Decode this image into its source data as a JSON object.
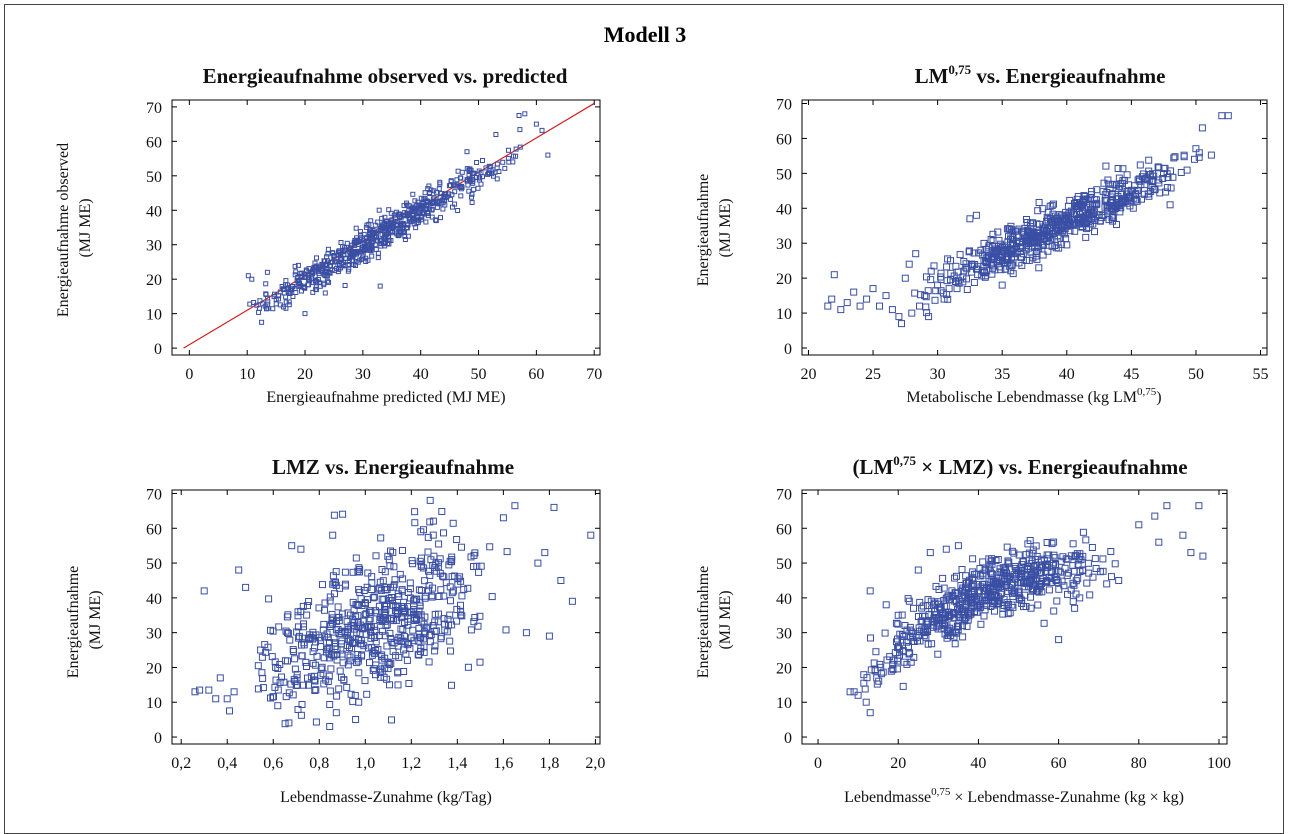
{
  "figure": {
    "title": "Modell 3"
  },
  "chart_data": [
    {
      "type": "scatter",
      "id": "p1",
      "title": "Energieaufnahme observed vs. predicted",
      "xlabel": "Energieaufnahme predicted (MJ ME)",
      "ylabel_lines": [
        "Energieaufnahme observed",
        "(MJ ME)"
      ],
      "xlim": [
        -3,
        71
      ],
      "ylim": [
        -2,
        72
      ],
      "xticks": [
        0,
        10,
        20,
        30,
        40,
        50,
        60,
        70
      ],
      "yticks": [
        0,
        10,
        20,
        30,
        40,
        50,
        60,
        70
      ],
      "xtick_labels": [
        "0",
        "10",
        "20",
        "30",
        "40",
        "50",
        "60",
        "70"
      ],
      "ytick_labels": [
        "0",
        "10",
        "20",
        "30",
        "40",
        "50",
        "60",
        "70"
      ],
      "marker_color": "#3a4fa3",
      "marker_size": "small",
      "reference_line": {
        "from": [
          -1,
          0
        ],
        "to": [
          70,
          71
        ],
        "color": "#d02020"
      },
      "cluster_model": {
        "x_range": [
          10,
          62
        ],
        "relation": "y = x",
        "spread": 2.6,
        "n": 650
      },
      "highlights": [
        {
          "x": 10.2,
          "y": 21
        },
        {
          "x": 10.8,
          "y": 20
        },
        {
          "x": 12.5,
          "y": 7.5
        },
        {
          "x": 33,
          "y": 18
        },
        {
          "x": 57,
          "y": 67.5
        },
        {
          "x": 58,
          "y": 68
        },
        {
          "x": 53,
          "y": 62
        },
        {
          "x": 48,
          "y": 57
        },
        {
          "x": 20,
          "y": 10
        },
        {
          "x": 13.5,
          "y": 22
        },
        {
          "x": 60,
          "y": 65
        },
        {
          "x": 62,
          "y": 56
        }
      ]
    },
    {
      "type": "scatter",
      "id": "p2",
      "title_main": "LM",
      "title_sup": "0,75",
      "title_rest": " vs. Energieaufnahme",
      "xlabel_main": "Metabolische Lebendmasse (kg LM",
      "xlabel_sup": "0,75",
      "xlabel_end": ")",
      "ylabel_lines": [
        "Energieaufnahme",
        "(MJ ME)"
      ],
      "xlim": [
        19.5,
        55.5
      ],
      "ylim": [
        -2,
        71
      ],
      "xticks": [
        20,
        25,
        30,
        35,
        40,
        45,
        50,
        55
      ],
      "yticks": [
        0,
        10,
        20,
        30,
        40,
        50,
        60,
        70
      ],
      "xtick_labels": [
        "20",
        "25",
        "30",
        "35",
        "40",
        "45",
        "50",
        "55"
      ],
      "ytick_labels": [
        "0",
        "10",
        "20",
        "30",
        "40",
        "50",
        "60",
        "70"
      ],
      "marker_color": "#3a4fa3",
      "marker_size": "large",
      "cluster_model": {
        "x_range": [
          28,
          53
        ],
        "relation": "y = 1.78*x - 35",
        "spread": 3.2,
        "n": 600
      },
      "highlights": [
        {
          "x": 21.5,
          "y": 12
        },
        {
          "x": 21.8,
          "y": 14
        },
        {
          "x": 22,
          "y": 21
        },
        {
          "x": 22.5,
          "y": 11
        },
        {
          "x": 23,
          "y": 13
        },
        {
          "x": 23.5,
          "y": 16
        },
        {
          "x": 24,
          "y": 12
        },
        {
          "x": 24.5,
          "y": 14
        },
        {
          "x": 25,
          "y": 17
        },
        {
          "x": 25.5,
          "y": 12
        },
        {
          "x": 26,
          "y": 15
        },
        {
          "x": 26.5,
          "y": 11
        },
        {
          "x": 27,
          "y": 9
        },
        {
          "x": 27.2,
          "y": 7
        },
        {
          "x": 27.5,
          "y": 20
        },
        {
          "x": 27.8,
          "y": 24
        },
        {
          "x": 28,
          "y": 10
        },
        {
          "x": 28.3,
          "y": 27
        },
        {
          "x": 28.6,
          "y": 12
        },
        {
          "x": 29,
          "y": 15
        },
        {
          "x": 29.3,
          "y": 9
        },
        {
          "x": 29.5,
          "y": 22
        },
        {
          "x": 30,
          "y": 18
        },
        {
          "x": 30.5,
          "y": 14
        },
        {
          "x": 31,
          "y": 25
        },
        {
          "x": 31.5,
          "y": 20
        },
        {
          "x": 32.5,
          "y": 37
        },
        {
          "x": 33,
          "y": 38
        },
        {
          "x": 35,
          "y": 18
        },
        {
          "x": 36,
          "y": 27
        },
        {
          "x": 52,
          "y": 66.5
        },
        {
          "x": 52.5,
          "y": 66.5
        },
        {
          "x": 50.5,
          "y": 63
        },
        {
          "x": 48,
          "y": 41
        },
        {
          "x": 46,
          "y": 44
        }
      ]
    },
    {
      "type": "scatter",
      "id": "p3",
      "title": "LMZ vs. Energieaufnahme",
      "xlabel": "Lebendmasse-Zunahme (kg/Tag)",
      "ylabel_lines": [
        "Energieaufnahme",
        "(MJ ME)"
      ],
      "xlim": [
        0.16,
        2.02
      ],
      "ylim": [
        -2,
        71
      ],
      "xticks": [
        0.2,
        0.4,
        0.6,
        0.8,
        1.0,
        1.2,
        1.4,
        1.6,
        1.8,
        2.0
      ],
      "yticks": [
        0,
        10,
        20,
        30,
        40,
        50,
        60,
        70
      ],
      "xtick_labels": [
        "0,2",
        "0,4",
        "0,6",
        "0,8",
        "1,0",
        "1,2",
        "1,4",
        "1,6",
        "1,8",
        "2,0"
      ],
      "ytick_labels": [
        "0",
        "10",
        "20",
        "30",
        "40",
        "50",
        "60",
        "70"
      ],
      "marker_color": "#3a4fa3",
      "marker_size": "large",
      "cluster_model": {
        "x_range": [
          0.5,
          1.7
        ],
        "relation": "y = 26*x + 6",
        "spread": 10,
        "n": 600
      },
      "highlights": [
        {
          "x": 0.26,
          "y": 13
        },
        {
          "x": 0.28,
          "y": 13.5
        },
        {
          "x": 0.3,
          "y": 42
        },
        {
          "x": 0.32,
          "y": 13.5
        },
        {
          "x": 0.35,
          "y": 11
        },
        {
          "x": 0.37,
          "y": 17
        },
        {
          "x": 0.4,
          "y": 11
        },
        {
          "x": 0.41,
          "y": 7.5
        },
        {
          "x": 0.43,
          "y": 13
        },
        {
          "x": 0.45,
          "y": 48
        },
        {
          "x": 0.48,
          "y": 43
        },
        {
          "x": 0.68,
          "y": 55
        },
        {
          "x": 0.72,
          "y": 54
        },
        {
          "x": 0.62,
          "y": 9
        },
        {
          "x": 1.98,
          "y": 58
        },
        {
          "x": 1.9,
          "y": 39
        },
        {
          "x": 1.85,
          "y": 45
        },
        {
          "x": 1.8,
          "y": 29
        },
        {
          "x": 1.82,
          "y": 66
        },
        {
          "x": 1.7,
          "y": 30
        },
        {
          "x": 1.65,
          "y": 66.5
        },
        {
          "x": 1.6,
          "y": 63
        },
        {
          "x": 1.75,
          "y": 50
        },
        {
          "x": 1.78,
          "y": 53
        }
      ]
    },
    {
      "type": "scatter",
      "id": "p4",
      "title_pre": "(LM",
      "title_sup": "0,75",
      "title_rest": " × LMZ) vs. Energieaufnahme",
      "xlabel_main": "Lebendmasse",
      "xlabel_sup": "0,75",
      "xlabel_end": " × Lebendmasse-Zunahme (kg × kg)",
      "ylabel_lines": [
        "Energieaufnahme",
        "(MJ ME)"
      ],
      "xlim": [
        -4,
        102
      ],
      "ylim": [
        -2,
        71
      ],
      "xticks": [
        0,
        20,
        40,
        60,
        80,
        100
      ],
      "yticks": [
        0,
        10,
        20,
        30,
        40,
        50,
        60,
        70
      ],
      "xtick_labels": [
        "0",
        "20",
        "40",
        "60",
        "80",
        "100"
      ],
      "ytick_labels": [
        "0",
        "10",
        "20",
        "30",
        "40",
        "50",
        "60",
        "70"
      ],
      "marker_color": "#3a4fa3",
      "marker_size": "large",
      "cluster_model": {
        "x_range": [
          10,
          80
        ],
        "relation": "y = 55 - 45*exp(-(x-8)/28)",
        "spread": 4.5,
        "n": 600
      },
      "highlights": [
        {
          "x": 8,
          "y": 13
        },
        {
          "x": 9,
          "y": 13
        },
        {
          "x": 10,
          "y": 12
        },
        {
          "x": 12,
          "y": 10
        },
        {
          "x": 13,
          "y": 7
        },
        {
          "x": 13,
          "y": 42
        },
        {
          "x": 17,
          "y": 38
        },
        {
          "x": 20,
          "y": 35
        },
        {
          "x": 25,
          "y": 48
        },
        {
          "x": 28,
          "y": 53
        },
        {
          "x": 32,
          "y": 54
        },
        {
          "x": 35,
          "y": 55
        },
        {
          "x": 95,
          "y": 66.5
        },
        {
          "x": 96,
          "y": 52
        },
        {
          "x": 91,
          "y": 58
        },
        {
          "x": 93,
          "y": 53
        },
        {
          "x": 87,
          "y": 66.5
        },
        {
          "x": 84,
          "y": 63.5
        },
        {
          "x": 85,
          "y": 56
        },
        {
          "x": 80,
          "y": 61
        },
        {
          "x": 75,
          "y": 45
        },
        {
          "x": 72,
          "y": 44
        },
        {
          "x": 64,
          "y": 37
        },
        {
          "x": 60,
          "y": 28
        }
      ]
    }
  ]
}
